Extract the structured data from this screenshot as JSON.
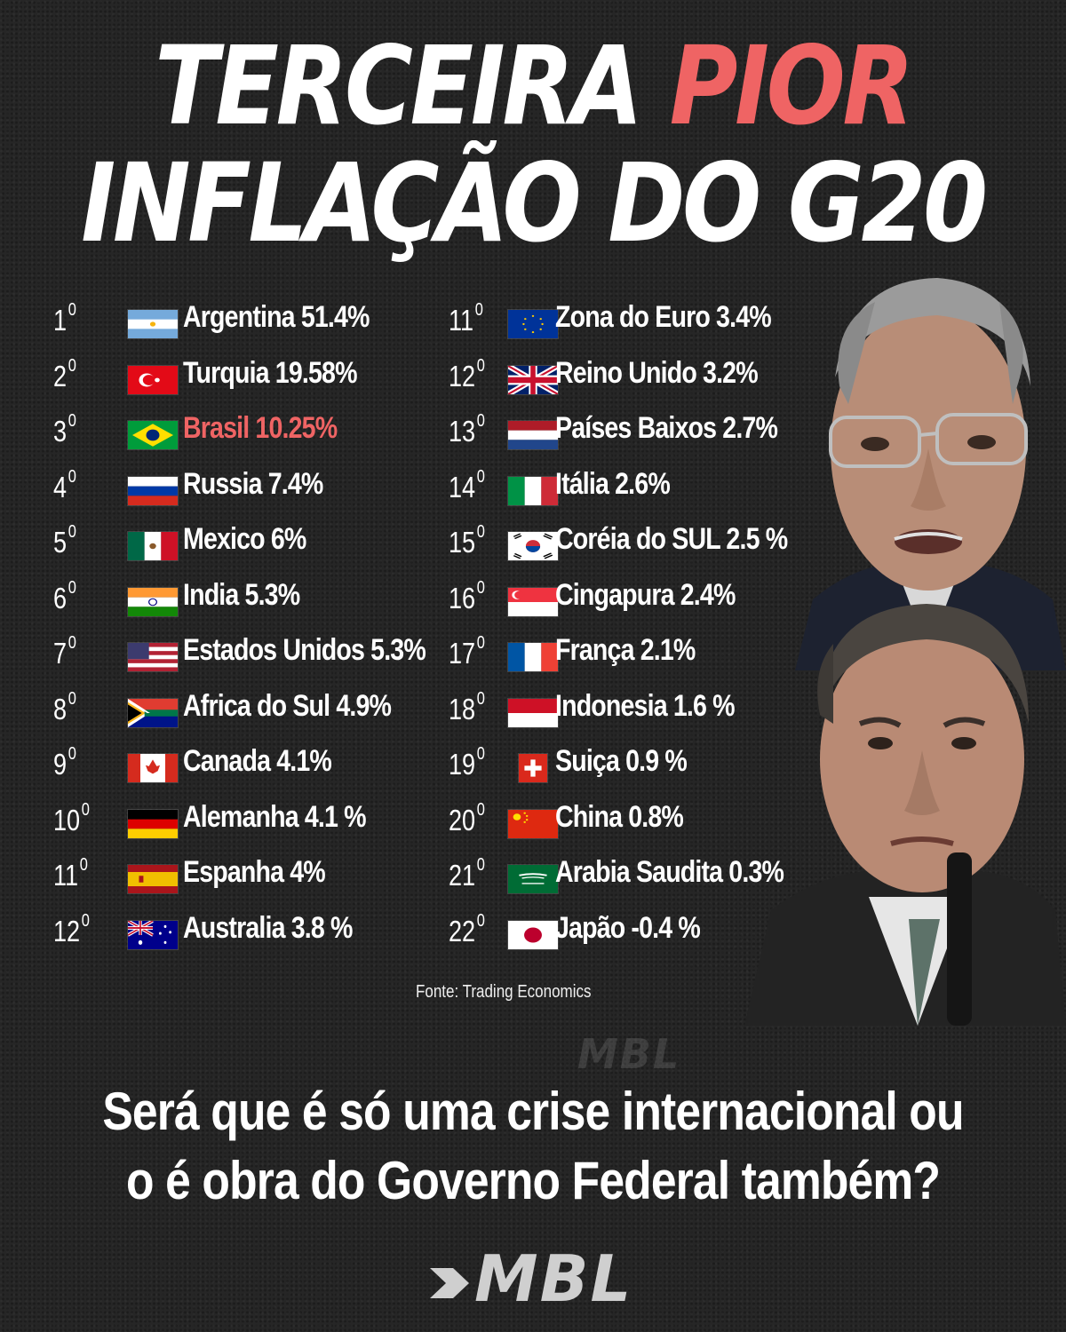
{
  "headline": {
    "line1_prefix": "TERCEIRA",
    "line1_highlight": "PIOR",
    "line2": "INFLAÇÃO DO G20"
  },
  "rankings_left": [
    {
      "rank": "1",
      "sup": "0",
      "flag": "argentina-flag-icon",
      "text": "Argentina  51.4%"
    },
    {
      "rank": "2",
      "sup": "0",
      "flag": "turkey-flag-icon",
      "text": "Turquia 19.58%"
    },
    {
      "rank": "3",
      "sup": "0",
      "flag": "brazil-flag-icon",
      "text": "Brasil 10.25%"
    },
    {
      "rank": "4",
      "sup": "0",
      "flag": "russia-flag-icon",
      "text": "Russia 7.4%"
    },
    {
      "rank": "5",
      "sup": "0",
      "flag": "mexico-flag-icon",
      "text": "Mexico 6%"
    },
    {
      "rank": "6",
      "sup": "0",
      "flag": "india-flag-icon",
      "text": "India 5.3%"
    },
    {
      "rank": "7",
      "sup": "0",
      "flag": "usa-flag-icon",
      "text": "Estados Unidos 5.3%"
    },
    {
      "rank": "8",
      "sup": "0",
      "flag": "south-africa-flag-icon",
      "text": "Africa do Sul 4.9%"
    },
    {
      "rank": "9",
      "sup": "0",
      "flag": "canada-flag-icon",
      "text": "Canada 4.1%"
    },
    {
      "rank": "10",
      "sup": "0",
      "flag": "germany-flag-icon",
      "text": "Alemanha 4.1 %"
    },
    {
      "rank": "11",
      "sup": "0",
      "flag": "spain-flag-icon",
      "text": "Espanha 4%"
    },
    {
      "rank": "12",
      "sup": "0",
      "flag": "australia-flag-icon",
      "text": "Australia 3.8 %"
    }
  ],
  "rankings_right": [
    {
      "rank": "11",
      "sup": "0",
      "flag": "eu-flag-icon",
      "text": "Zona do Euro 3.4%"
    },
    {
      "rank": "12",
      "sup": "0",
      "flag": "uk-flag-icon",
      "text": "Reino Unido 3.2%"
    },
    {
      "rank": "13",
      "sup": "0",
      "flag": "netherlands-flag-icon",
      "text": "Países Baixos 2.7%"
    },
    {
      "rank": "14",
      "sup": "0",
      "flag": "italy-flag-icon",
      "text": "Itália 2.6%"
    },
    {
      "rank": "15",
      "sup": "0",
      "flag": "south-korea-flag-icon",
      "text": "Coréia do SUL 2.5 %"
    },
    {
      "rank": "16",
      "sup": "0",
      "flag": "singapore-flag-icon",
      "text": "Cingapura 2.4%"
    },
    {
      "rank": "17",
      "sup": "0",
      "flag": "france-flag-icon",
      "text": "França 2.1%"
    },
    {
      "rank": "18",
      "sup": "0",
      "flag": "indonesia-flag-icon",
      "text": "Indonesia 1.6 %"
    },
    {
      "rank": "19",
      "sup": "0",
      "flag": "switzerland-flag-icon",
      "text": "Suiça 0.9 %"
    },
    {
      "rank": "20",
      "sup": "0",
      "flag": "china-flag-icon",
      "text": "China 0.8%"
    },
    {
      "rank": "21",
      "sup": "0",
      "flag": "saudi-arabia-flag-icon",
      "text": "Arabia Saudita 0.3%"
    },
    {
      "rank": "22",
      "sup": "0",
      "flag": "japan-flag-icon",
      "text": "Japão -0.4 %"
    }
  ],
  "highlight_color": "#ef6464",
  "source": "Fonte: Trading Economics",
  "watermark": "MBL",
  "question": {
    "line1": "Será que é só uma crise internacional ou",
    "line2": "o é obra do Governo Federal também?"
  },
  "logo": "MBL"
}
